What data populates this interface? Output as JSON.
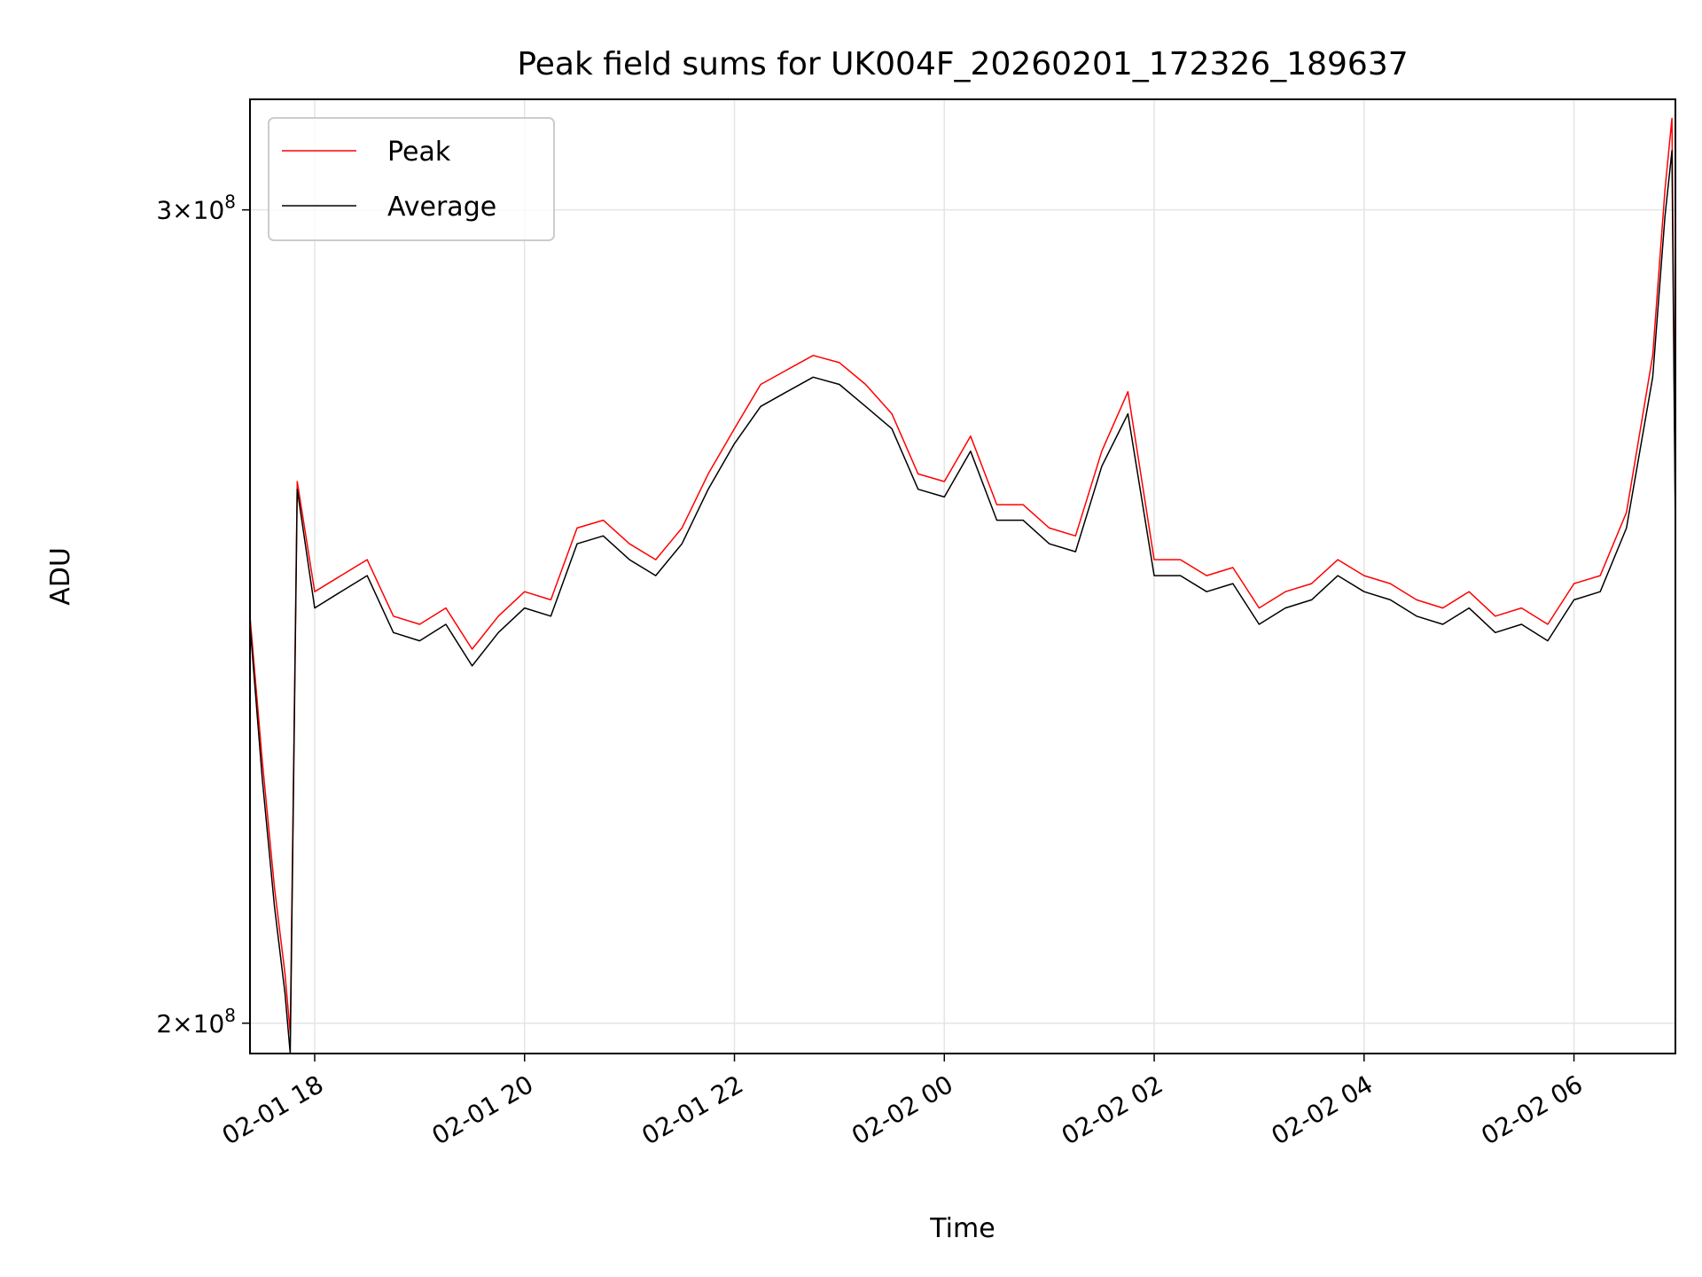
{
  "chart_data": {
    "type": "line",
    "title": "Peak field sums for UK004F_20260201_172326_189637",
    "xlabel": "Time",
    "ylabel": "ADU",
    "xlim": [
      "2026-02-01T17:23",
      "2026-02-02T06:58"
    ],
    "ylim": [
      197000000,
      317000000
    ],
    "yscale": "log",
    "grid": true,
    "legend_placement": "top-left",
    "x_ticks": [
      {
        "value": "2026-02-01T18:00",
        "label": "02-01 18"
      },
      {
        "value": "2026-02-01T20:00",
        "label": "02-01 20"
      },
      {
        "value": "2026-02-01T22:00",
        "label": "02-01 22"
      },
      {
        "value": "2026-02-02T00:00",
        "label": "02-02 00"
      },
      {
        "value": "2026-02-02T02:00",
        "label": "02-02 02"
      },
      {
        "value": "2026-02-02T04:00",
        "label": "02-02 04"
      },
      {
        "value": "2026-02-02T06:00",
        "label": "02-02 06"
      }
    ],
    "y_ticks": [
      {
        "value": 200000000,
        "mantissa": "2",
        "times": "×",
        "base": "10",
        "exponent": "8"
      },
      {
        "value": 300000000,
        "mantissa": "3",
        "times": "×",
        "base": "10",
        "exponent": "8"
      }
    ],
    "x": [
      "2026-02-01T17:23",
      "2026-02-01T17:30",
      "2026-02-01T17:37",
      "2026-02-01T17:43",
      "2026-02-01T17:46",
      "2026-02-01T17:50",
      "2026-02-01T18:00",
      "2026-02-01T18:15",
      "2026-02-01T18:30",
      "2026-02-01T18:45",
      "2026-02-01T19:00",
      "2026-02-01T19:15",
      "2026-02-01T19:30",
      "2026-02-01T19:45",
      "2026-02-01T20:00",
      "2026-02-01T20:15",
      "2026-02-01T20:30",
      "2026-02-01T20:45",
      "2026-02-01T21:00",
      "2026-02-01T21:15",
      "2026-02-01T21:30",
      "2026-02-01T21:45",
      "2026-02-01T22:00",
      "2026-02-01T22:15",
      "2026-02-01T22:30",
      "2026-02-01T22:45",
      "2026-02-01T23:00",
      "2026-02-01T23:15",
      "2026-02-01T23:30",
      "2026-02-01T23:45",
      "2026-02-02T00:00",
      "2026-02-02T00:15",
      "2026-02-02T00:30",
      "2026-02-02T00:45",
      "2026-02-02T01:00",
      "2026-02-02T01:15",
      "2026-02-02T01:30",
      "2026-02-02T01:45",
      "2026-02-02T02:00",
      "2026-02-02T02:15",
      "2026-02-02T02:30",
      "2026-02-02T02:45",
      "2026-02-02T03:00",
      "2026-02-02T03:15",
      "2026-02-02T03:30",
      "2026-02-02T03:45",
      "2026-02-02T04:00",
      "2026-02-02T04:15",
      "2026-02-02T04:30",
      "2026-02-02T04:45",
      "2026-02-02T05:00",
      "2026-02-02T05:15",
      "2026-02-02T05:30",
      "2026-02-02T05:45",
      "2026-02-02T06:00",
      "2026-02-02T06:15",
      "2026-02-02T06:30",
      "2026-02-02T06:45",
      "2026-02-02T06:52",
      "2026-02-02T06:56",
      "2026-02-02T06:58"
    ],
    "series": [
      {
        "name": "Peak",
        "color": "#ff0000",
        "values": [
          245000000,
          228000000,
          214000000,
          205000000,
          199000000,
          262000000,
          248000000,
          250000000,
          252000000,
          245000000,
          244000000,
          246000000,
          241000000,
          245000000,
          248000000,
          247000000,
          256000000,
          257000000,
          254000000,
          252000000,
          256000000,
          263000000,
          269000000,
          275000000,
          277000000,
          279000000,
          278000000,
          275000000,
          271000000,
          263000000,
          262000000,
          268000000,
          259000000,
          259000000,
          256000000,
          255000000,
          266000000,
          274000000,
          252000000,
          252000000,
          250000000,
          251000000,
          246000000,
          248000000,
          249000000,
          252000000,
          250000000,
          249000000,
          247000000,
          246000000,
          248000000,
          245000000,
          246000000,
          244000000,
          249000000,
          250000000,
          258000000,
          279000000,
          303000000,
          314000000,
          257000000
        ]
      },
      {
        "name": "Average",
        "color": "#000000",
        "values": [
          244000000,
          226000000,
          212000000,
          203000000,
          197000000,
          261000000,
          246000000,
          248000000,
          250000000,
          243000000,
          242000000,
          244000000,
          239000000,
          243000000,
          246000000,
          245000000,
          254000000,
          255000000,
          252000000,
          250000000,
          254000000,
          261000000,
          267000000,
          272000000,
          274000000,
          276000000,
          275000000,
          272000000,
          269000000,
          261000000,
          260000000,
          266000000,
          257000000,
          257000000,
          254000000,
          253000000,
          264000000,
          271000000,
          250000000,
          250000000,
          248000000,
          249000000,
          244000000,
          246000000,
          247000000,
          250000000,
          248000000,
          247000000,
          245000000,
          244000000,
          246000000,
          243000000,
          244000000,
          242000000,
          247000000,
          248000000,
          256000000,
          276000000,
          299000000,
          309000000,
          255000000
        ]
      }
    ]
  }
}
